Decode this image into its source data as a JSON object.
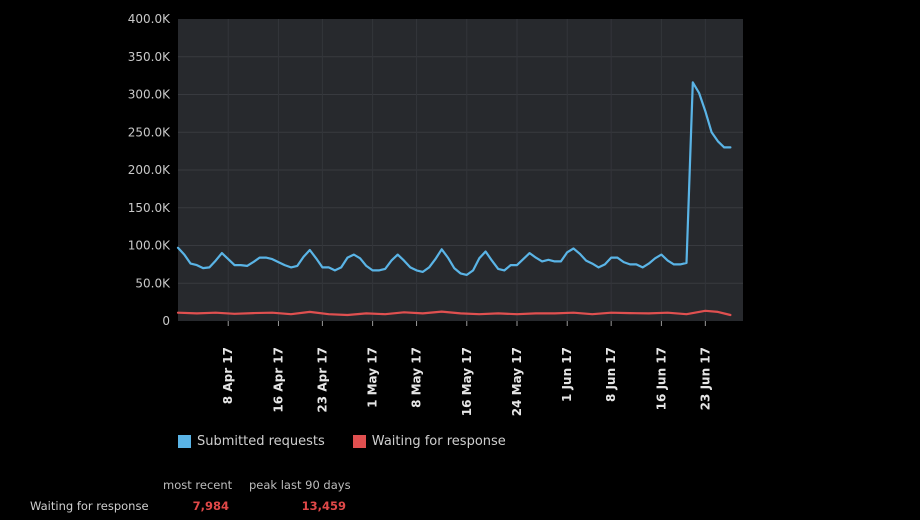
{
  "chart_data": {
    "type": "line",
    "title": "",
    "xlabel": "",
    "ylabel": "",
    "ylim": [
      0,
      400000
    ],
    "y_ticks": [
      "0",
      "50.0K",
      "100.0K",
      "150.0K",
      "200.0K",
      "250.0K",
      "300.0K",
      "350.0K",
      "400.0K"
    ],
    "x_range": [
      "2017-03-31",
      "2017-06-29"
    ],
    "x_ticks": [
      {
        "date": "2017-04-08",
        "label": "8 Apr 17"
      },
      {
        "date": "2017-04-16",
        "label": "16 Apr 17"
      },
      {
        "date": "2017-04-23",
        "label": "23 Apr 17"
      },
      {
        "date": "2017-05-01",
        "label": "1 May 17"
      },
      {
        "date": "2017-05-08",
        "label": "8 May 17"
      },
      {
        "date": "2017-05-16",
        "label": "16 May 17"
      },
      {
        "date": "2017-05-24",
        "label": "24 May 17"
      },
      {
        "date": "2017-06-01",
        "label": "1 Jun 17"
      },
      {
        "date": "2017-06-08",
        "label": "8 Jun 17"
      },
      {
        "date": "2017-06-16",
        "label": "16 Jun 17"
      },
      {
        "date": "2017-06-23",
        "label": "23 Jun 17"
      }
    ],
    "grid": true,
    "legend_position": "bottom-left",
    "series": [
      {
        "name": "Submitted requests",
        "color": "#5ab4e6",
        "points": [
          [
            "2017-03-31",
            97000
          ],
          [
            "2017-04-01",
            88000
          ],
          [
            "2017-04-02",
            76000
          ],
          [
            "2017-04-03",
            74000
          ],
          [
            "2017-04-04",
            70000
          ],
          [
            "2017-04-05",
            71000
          ],
          [
            "2017-04-06",
            80000
          ],
          [
            "2017-04-07",
            90000
          ],
          [
            "2017-04-08",
            82000
          ],
          [
            "2017-04-09",
            74000
          ],
          [
            "2017-04-10",
            74000
          ],
          [
            "2017-04-11",
            73000
          ],
          [
            "2017-04-12",
            78000
          ],
          [
            "2017-04-13",
            84000
          ],
          [
            "2017-04-14",
            84000
          ],
          [
            "2017-04-15",
            82000
          ],
          [
            "2017-04-16",
            78000
          ],
          [
            "2017-04-17",
            74000
          ],
          [
            "2017-04-18",
            71000
          ],
          [
            "2017-04-19",
            73000
          ],
          [
            "2017-04-20",
            85000
          ],
          [
            "2017-04-21",
            94000
          ],
          [
            "2017-04-22",
            83000
          ],
          [
            "2017-04-23",
            71000
          ],
          [
            "2017-04-24",
            71000
          ],
          [
            "2017-04-25",
            67000
          ],
          [
            "2017-04-26",
            71000
          ],
          [
            "2017-04-27",
            84000
          ],
          [
            "2017-04-28",
            88000
          ],
          [
            "2017-04-29",
            83000
          ],
          [
            "2017-04-30",
            73000
          ],
          [
            "2017-05-01",
            67000
          ],
          [
            "2017-05-02",
            67000
          ],
          [
            "2017-05-03",
            69000
          ],
          [
            "2017-05-04",
            80000
          ],
          [
            "2017-05-05",
            88000
          ],
          [
            "2017-05-06",
            80000
          ],
          [
            "2017-05-07",
            71000
          ],
          [
            "2017-05-08",
            67000
          ],
          [
            "2017-05-09",
            65000
          ],
          [
            "2017-05-10",
            71000
          ],
          [
            "2017-05-11",
            82000
          ],
          [
            "2017-05-12",
            95000
          ],
          [
            "2017-05-13",
            84000
          ],
          [
            "2017-05-14",
            70000
          ],
          [
            "2017-05-15",
            63000
          ],
          [
            "2017-05-16",
            61000
          ],
          [
            "2017-05-17",
            67000
          ],
          [
            "2017-05-18",
            83000
          ],
          [
            "2017-05-19",
            92000
          ],
          [
            "2017-05-20",
            80000
          ],
          [
            "2017-05-21",
            69000
          ],
          [
            "2017-05-22",
            67000
          ],
          [
            "2017-05-23",
            74000
          ],
          [
            "2017-05-24",
            74000
          ],
          [
            "2017-05-25",
            82000
          ],
          [
            "2017-05-26",
            90000
          ],
          [
            "2017-05-27",
            84000
          ],
          [
            "2017-05-28",
            79000
          ],
          [
            "2017-05-29",
            81000
          ],
          [
            "2017-05-30",
            79000
          ],
          [
            "2017-05-31",
            79000
          ],
          [
            "2017-06-01",
            91000
          ],
          [
            "2017-06-02",
            96000
          ],
          [
            "2017-06-03",
            89000
          ],
          [
            "2017-06-04",
            80000
          ],
          [
            "2017-06-05",
            76000
          ],
          [
            "2017-06-06",
            71000
          ],
          [
            "2017-06-07",
            75000
          ],
          [
            "2017-06-08",
            84000
          ],
          [
            "2017-06-09",
            84000
          ],
          [
            "2017-06-10",
            78000
          ],
          [
            "2017-06-11",
            75000
          ],
          [
            "2017-06-12",
            75000
          ],
          [
            "2017-06-13",
            71000
          ],
          [
            "2017-06-14",
            76000
          ],
          [
            "2017-06-15",
            83000
          ],
          [
            "2017-06-16",
            88000
          ],
          [
            "2017-06-17",
            80000
          ],
          [
            "2017-06-18",
            75000
          ],
          [
            "2017-06-19",
            75000
          ],
          [
            "2017-06-20",
            77000
          ],
          [
            "2017-06-21",
            316000
          ],
          [
            "2017-06-22",
            302000
          ],
          [
            "2017-06-23",
            278000
          ],
          [
            "2017-06-24",
            250000
          ],
          [
            "2017-06-25",
            238000
          ],
          [
            "2017-06-26",
            230000
          ],
          [
            "2017-06-27",
            230000
          ]
        ]
      },
      {
        "name": "Waiting for response",
        "color": "#e05050",
        "points": [
          [
            "2017-03-31",
            11000
          ],
          [
            "2017-04-03",
            10000
          ],
          [
            "2017-04-06",
            11000
          ],
          [
            "2017-04-09",
            9500
          ],
          [
            "2017-04-12",
            10500
          ],
          [
            "2017-04-15",
            11000
          ],
          [
            "2017-04-18",
            9000
          ],
          [
            "2017-04-21",
            12000
          ],
          [
            "2017-04-24",
            9000
          ],
          [
            "2017-04-27",
            8000
          ],
          [
            "2017-04-30",
            10000
          ],
          [
            "2017-05-03",
            9000
          ],
          [
            "2017-05-06",
            11500
          ],
          [
            "2017-05-09",
            10000
          ],
          [
            "2017-05-12",
            12500
          ],
          [
            "2017-05-15",
            10000
          ],
          [
            "2017-05-18",
            9000
          ],
          [
            "2017-05-21",
            10000
          ],
          [
            "2017-05-24",
            9000
          ],
          [
            "2017-05-27",
            10000
          ],
          [
            "2017-05-30",
            10000
          ],
          [
            "2017-06-02",
            11000
          ],
          [
            "2017-06-05",
            9000
          ],
          [
            "2017-06-08",
            11000
          ],
          [
            "2017-06-11",
            10500
          ],
          [
            "2017-06-14",
            10000
          ],
          [
            "2017-06-17",
            11000
          ],
          [
            "2017-06-20",
            9000
          ],
          [
            "2017-06-23",
            13459
          ],
          [
            "2017-06-25",
            12000
          ],
          [
            "2017-06-27",
            7984
          ]
        ]
      }
    ]
  },
  "stats": {
    "col_most_recent": "most recent",
    "col_peak": "peak last 90 days",
    "row_label": "Waiting for response",
    "most_recent_value": "7,984",
    "peak_value": "13,459",
    "value_color": "#e04848"
  }
}
